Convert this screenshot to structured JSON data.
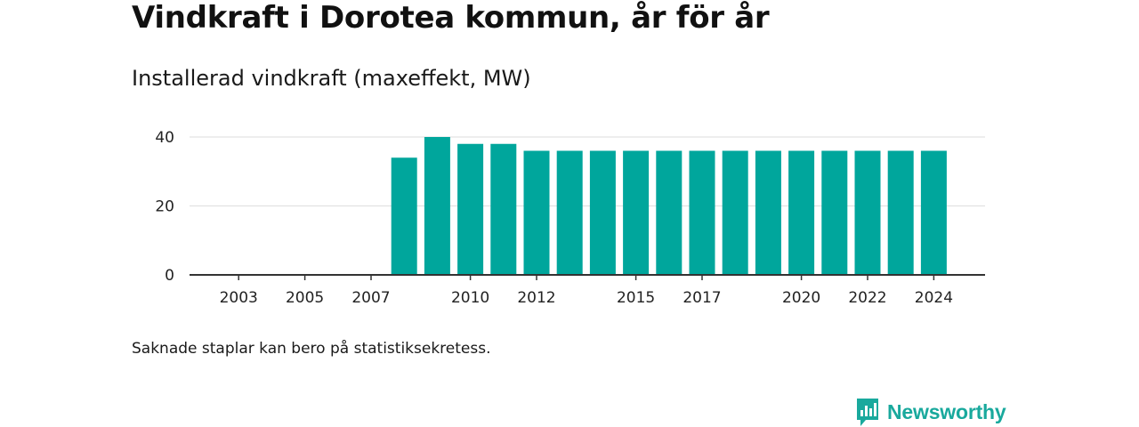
{
  "header": {
    "title": "Vindkraft i Dorotea kommun, år för år",
    "subtitle": "Installerad vindkraft (maxeffekt, MW)"
  },
  "footer": {
    "note": "Saknade staplar kan bero på statistiksekretess.",
    "brand": "Newsworthy"
  },
  "colors": {
    "bar": "#00a69c",
    "grid": "#dddddd",
    "axis": "#333333",
    "brand": "#19a99d"
  },
  "icons": {
    "logo": "newsworthy-logo-icon"
  },
  "chart_data": {
    "type": "bar",
    "title": "Installerad vindkraft (maxeffekt, MW)",
    "xlabel": "",
    "ylabel": "",
    "categories": [
      2002,
      2003,
      2004,
      2005,
      2006,
      2007,
      2008,
      2009,
      2010,
      2011,
      2012,
      2013,
      2014,
      2015,
      2016,
      2017,
      2018,
      2019,
      2020,
      2021,
      2022,
      2023,
      2024
    ],
    "values": [
      null,
      null,
      null,
      null,
      null,
      null,
      34,
      40,
      38,
      38,
      36,
      36,
      36,
      36,
      36,
      36,
      36,
      36,
      36,
      36,
      36,
      36,
      36
    ],
    "x_tick_labels": [
      "2003",
      "2005",
      "2007",
      "2010",
      "2012",
      "2015",
      "2017",
      "2020",
      "2022",
      "2024"
    ],
    "y_ticks": [
      0,
      20,
      40
    ],
    "ylim": [
      0,
      40
    ],
    "grid": true,
    "legend": "none"
  }
}
